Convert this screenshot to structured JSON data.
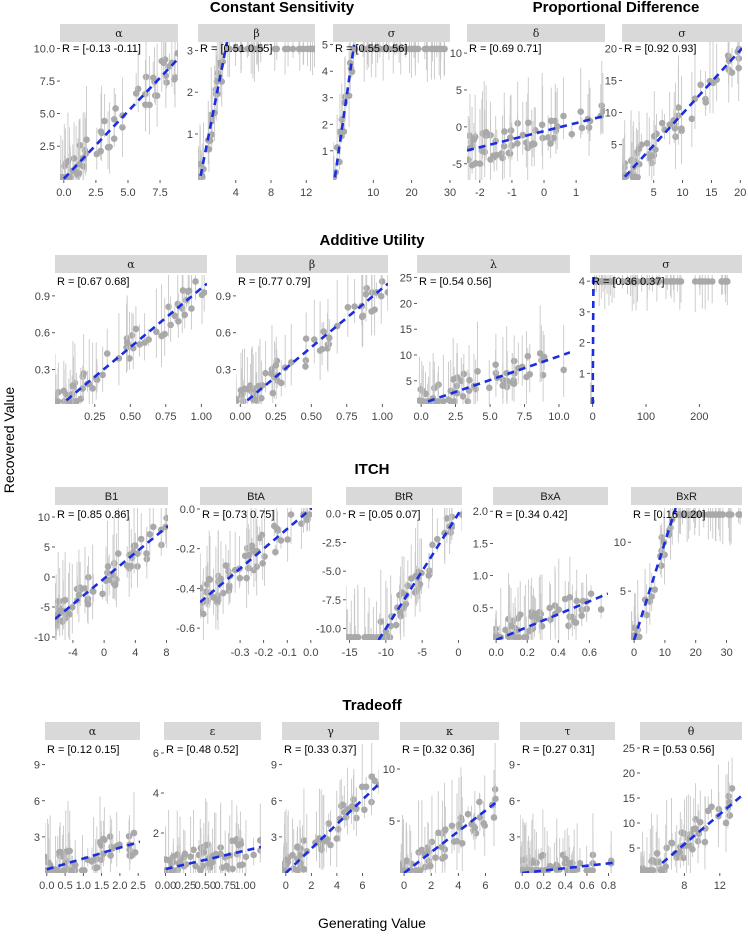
{
  "axes": {
    "xlabel": "Generating Value",
    "ylabel": "Recovered Value"
  },
  "colors": {
    "points": "#a9a9a9",
    "errorbars": "#c8c8c8",
    "fit": "#1a2ee0",
    "strip": "#d9d9d9"
  },
  "groups": [
    {
      "title": "Constant Sensitivity"
    },
    {
      "title": "Proportional Difference"
    },
    {
      "title": "Additive Utility"
    },
    {
      "title": "ITCH"
    },
    {
      "title": "Tradeoff"
    }
  ],
  "chart_data": [
    {
      "group": "Constant Sensitivity",
      "strip": "α",
      "r_label": "R = [-0.13 -0.11]",
      "type": "scatter",
      "xlim": [
        -0.3,
        8.9
      ],
      "ylim": [
        -0.1,
        10.5
      ],
      "xticks": [
        {
          "v": 0,
          "l": "0.0"
        },
        {
          "v": 2.5,
          "l": "2.5"
        },
        {
          "v": 5,
          "l": "5.0"
        },
        {
          "v": 7.5,
          "l": "7.5"
        }
      ],
      "yticks": [
        {
          "v": 2.5,
          "l": "2.5"
        },
        {
          "v": 5,
          "l": "5.0"
        },
        {
          "v": 7.5,
          "l": "7.5"
        },
        {
          "v": 10,
          "l": "10.0"
        }
      ],
      "fit": [
        [
          0,
          0
        ],
        [
          8.9,
          9.2
        ]
      ]
    },
    {
      "group": "Constant Sensitivity",
      "strip": "β",
      "r_label": "R = [0.51 0.55]",
      "type": "scatter",
      "xlim": [
        -0.3,
        13
      ],
      "ylim": [
        -0.1,
        3.2
      ],
      "xticks": [
        {
          "v": 4,
          "l": "4"
        },
        {
          "v": 8,
          "l": "8"
        },
        {
          "v": 12,
          "l": "12"
        }
      ],
      "yticks": [
        {
          "v": 1,
          "l": "1"
        },
        {
          "v": 2,
          "l": "2"
        },
        {
          "v": 3,
          "l": "3"
        }
      ],
      "fit": [
        [
          0,
          0
        ],
        [
          3.0,
          3.2
        ]
      ]
    },
    {
      "group": "Constant Sensitivity",
      "strip": "σ",
      "r_label": "R = [0.55 0.56]",
      "type": "scatter",
      "xlim": [
        -0.5,
        30
      ],
      "ylim": [
        -0.1,
        5.1
      ],
      "xticks": [
        {
          "v": 10,
          "l": "10"
        },
        {
          "v": 20,
          "l": "20"
        },
        {
          "v": 30,
          "l": "30"
        }
      ],
      "yticks": [
        {
          "v": 1,
          "l": "1"
        },
        {
          "v": 2,
          "l": "2"
        },
        {
          "v": 3,
          "l": "3"
        },
        {
          "v": 4,
          "l": "4"
        },
        {
          "v": 5,
          "l": "5"
        }
      ],
      "fit": [
        [
          0,
          0
        ],
        [
          5,
          5
        ]
      ]
    },
    {
      "group": "Proportional Difference",
      "strip": "δ",
      "r_label": "R = [0.69 0.71]",
      "type": "scatter",
      "xlim": [
        -2.4,
        1.9
      ],
      "ylim": [
        -7.2,
        11.5
      ],
      "xticks": [
        {
          "v": -2,
          "l": "-2"
        },
        {
          "v": -1,
          "l": "-1"
        },
        {
          "v": 0,
          "l": "0"
        },
        {
          "v": 1,
          "l": "1"
        }
      ],
      "yticks": [
        {
          "v": -5,
          "l": "-5"
        },
        {
          "v": 0,
          "l": "0"
        },
        {
          "v": 5,
          "l": "5"
        },
        {
          "v": 10,
          "l": "10"
        }
      ],
      "fit": [
        [
          -2.4,
          -3.2
        ],
        [
          1.9,
          1.5
        ]
      ]
    },
    {
      "group": "Proportional Difference",
      "strip": "σ",
      "r_label": "R = [0.92 0.93]",
      "type": "scatter",
      "xlim": [
        -0.5,
        20.3
      ],
      "ylim": [
        -0.5,
        21
      ],
      "xticks": [
        {
          "v": 5,
          "l": "5"
        },
        {
          "v": 10,
          "l": "10"
        },
        {
          "v": 15,
          "l": "15"
        },
        {
          "v": 20,
          "l": "20"
        }
      ],
      "yticks": [
        {
          "v": 5,
          "l": "5"
        },
        {
          "v": 10,
          "l": "10"
        },
        {
          "v": 15,
          "l": "15"
        },
        {
          "v": 20,
          "l": "20"
        }
      ],
      "fit": [
        [
          0,
          0
        ],
        [
          20.3,
          20
        ]
      ]
    },
    {
      "group": "Additive Utility",
      "strip": "α",
      "r_label": "R = [0.67 0.68]",
      "type": "scatter",
      "xlim": [
        -0.03,
        1.04
      ],
      "ylim": [
        0.02,
        1.07
      ],
      "xticks": [
        {
          "v": 0.25,
          "l": "0.25"
        },
        {
          "v": 0.5,
          "l": "0.50"
        },
        {
          "v": 0.75,
          "l": "0.75"
        },
        {
          "v": 1,
          "l": "1.00"
        }
      ],
      "yticks": [
        {
          "v": 0.3,
          "l": "0.3"
        },
        {
          "v": 0.6,
          "l": "0.6"
        },
        {
          "v": 0.9,
          "l": "0.9"
        }
      ],
      "fit": [
        [
          0.05,
          0.05
        ],
        [
          1.04,
          1.0
        ]
      ]
    },
    {
      "group": "Additive Utility",
      "strip": "β",
      "r_label": "R = [0.77 0.79]",
      "type": "scatter",
      "xlim": [
        -0.03,
        1.04
      ],
      "ylim": [
        0.02,
        1.07
      ],
      "xticks": [
        {
          "v": 0,
          "l": "0.00"
        },
        {
          "v": 0.25,
          "l": "0.25"
        },
        {
          "v": 0.5,
          "l": "0.50"
        },
        {
          "v": 0.75,
          "l": "0.75"
        },
        {
          "v": 1,
          "l": "1.00"
        }
      ],
      "yticks": [
        {
          "v": 0.3,
          "l": "0.3"
        },
        {
          "v": 0.6,
          "l": "0.6"
        },
        {
          "v": 0.9,
          "l": "0.9"
        }
      ],
      "fit": [
        [
          0.05,
          0.05
        ],
        [
          1.04,
          1.0
        ]
      ]
    },
    {
      "group": "Additive Utility",
      "strip": "λ",
      "r_label": "R = [0.54 0.56]",
      "type": "scatter",
      "xlim": [
        -0.3,
        10.8
      ],
      "ylim": [
        0.5,
        25.5
      ],
      "xticks": [
        {
          "v": 0,
          "l": "0.0"
        },
        {
          "v": 2.5,
          "l": "2.5"
        },
        {
          "v": 5,
          "l": "5.0"
        },
        {
          "v": 7.5,
          "l": "7.5"
        },
        {
          "v": 10,
          "l": "10.0"
        }
      ],
      "yticks": [
        {
          "v": 5,
          "l": "5"
        },
        {
          "v": 10,
          "l": "10"
        },
        {
          "v": 15,
          "l": "15"
        },
        {
          "v": 20,
          "l": "20"
        },
        {
          "v": 25,
          "l": "25"
        }
      ],
      "fit": [
        [
          0.5,
          1
        ],
        [
          10.8,
          10.5
        ]
      ]
    },
    {
      "group": "Additive Utility",
      "strip": "σ",
      "r_label": "R = [0.36 0.37]",
      "type": "scatter",
      "xlim": [
        -5,
        280
      ],
      "ylim": [
        0,
        4.2
      ],
      "xticks": [
        {
          "v": 0,
          "l": "0"
        },
        {
          "v": 100,
          "l": "100"
        },
        {
          "v": 200,
          "l": "200"
        }
      ],
      "yticks": [
        {
          "v": 1,
          "l": "1"
        },
        {
          "v": 2,
          "l": "2"
        },
        {
          "v": 3,
          "l": "3"
        },
        {
          "v": 4,
          "l": "4"
        }
      ],
      "fit": [
        [
          0,
          0
        ],
        [
          1.5,
          4.2
        ]
      ]
    },
    {
      "group": "ITCH",
      "strip": "B1",
      "r_label": "R = [0.85 0.86]",
      "type": "scatter",
      "xlim": [
        -6.3,
        8.2
      ],
      "ylim": [
        -10.5,
        11.5
      ],
      "xticks": [
        {
          "v": -4,
          "l": "-4"
        },
        {
          "v": 0,
          "l": "0"
        },
        {
          "v": 4,
          "l": "4"
        },
        {
          "v": 8,
          "l": "8"
        }
      ],
      "yticks": [
        {
          "v": -10,
          "l": "-10"
        },
        {
          "v": -5,
          "l": "-5"
        },
        {
          "v": 0,
          "l": "0"
        },
        {
          "v": 5,
          "l": "5"
        },
        {
          "v": 10,
          "l": "10"
        }
      ],
      "fit": [
        [
          -6.3,
          -7
        ],
        [
          8.2,
          8.5
        ]
      ]
    },
    {
      "group": "ITCH",
      "strip": "BtA",
      "r_label": "R = [0.73 0.75]",
      "type": "scatter",
      "xlim": [
        -0.47,
        0.005
      ],
      "ylim": [
        -0.66,
        0.005
      ],
      "xticks": [
        {
          "v": -0.3,
          "l": "-0.3"
        },
        {
          "v": -0.2,
          "l": "-0.2"
        },
        {
          "v": -0.1,
          "l": "-0.1"
        },
        {
          "v": 0,
          "l": "0.0"
        }
      ],
      "yticks": [
        {
          "v": -0.6,
          "l": "-0.6"
        },
        {
          "v": -0.4,
          "l": "-0.4"
        },
        {
          "v": -0.2,
          "l": "-0.2"
        },
        {
          "v": 0,
          "l": "0.0"
        }
      ],
      "fit": [
        [
          -0.47,
          -0.47
        ],
        [
          0.005,
          0.005
        ]
      ]
    },
    {
      "group": "ITCH",
      "strip": "BtR",
      "r_label": "R = [0.05 0.07]",
      "type": "scatter",
      "xlim": [
        -15.5,
        0.5
      ],
      "ylim": [
        -11,
        0.5
      ],
      "xticks": [
        {
          "v": -15,
          "l": "-15"
        },
        {
          "v": -10,
          "l": "-10"
        },
        {
          "v": -5,
          "l": "-5"
        },
        {
          "v": 0,
          "l": "0"
        }
      ],
      "yticks": [
        {
          "v": -10,
          "l": "-10.0"
        },
        {
          "v": -7.5,
          "l": "-7.5"
        },
        {
          "v": -5,
          "l": "-5.0"
        },
        {
          "v": -2.5,
          "l": "-2.5"
        },
        {
          "v": 0,
          "l": "0.0"
        }
      ],
      "fit": [
        [
          -11,
          -11
        ],
        [
          0.5,
          0.5
        ]
      ]
    },
    {
      "group": "ITCH",
      "strip": "BxA",
      "r_label": "R = [0.34 0.42]",
      "type": "scatter",
      "xlim": [
        -0.02,
        0.72
      ],
      "ylim": [
        0,
        2.05
      ],
      "xticks": [
        {
          "v": 0,
          "l": "0.0"
        },
        {
          "v": 0.2,
          "l": "0.2"
        },
        {
          "v": 0.4,
          "l": "0.4"
        },
        {
          "v": 0.6,
          "l": "0.6"
        }
      ],
      "yticks": [
        {
          "v": 0.5,
          "l": "0.5"
        },
        {
          "v": 1,
          "l": "1.0"
        },
        {
          "v": 1.5,
          "l": "1.5"
        },
        {
          "v": 2,
          "l": "2.0"
        }
      ],
      "fit": [
        [
          0,
          0
        ],
        [
          0.72,
          0.72
        ]
      ]
    },
    {
      "group": "ITCH",
      "strip": "BxR",
      "r_label": "R = [0.16 0.20]",
      "type": "scatter",
      "xlim": [
        -1,
        35
      ],
      "ylim": [
        0,
        13.5
      ],
      "xticks": [
        {
          "v": 0,
          "l": "0"
        },
        {
          "v": 10,
          "l": "10"
        },
        {
          "v": 20,
          "l": "20"
        },
        {
          "v": 30,
          "l": "30"
        }
      ],
      "yticks": [
        {
          "v": 5,
          "l": "5"
        },
        {
          "v": 10,
          "l": "10"
        }
      ],
      "fit": [
        [
          0,
          0
        ],
        [
          13.5,
          13.5
        ]
      ]
    },
    {
      "group": "Tradeoff",
      "strip": "α",
      "r_label": "R = [0.12 0.15]",
      "type": "scatter",
      "xlim": [
        -0.05,
        2.55
      ],
      "ylim": [
        0,
        10.8
      ],
      "xticks": [
        {
          "v": 0,
          "l": "0.0"
        },
        {
          "v": 0.5,
          "l": "0.5"
        },
        {
          "v": 1,
          "l": "1.0"
        },
        {
          "v": 1.5,
          "l": "1.5"
        },
        {
          "v": 2,
          "l": "2.0"
        },
        {
          "v": 2.5,
          "l": "2.5"
        }
      ],
      "yticks": [
        {
          "v": 3,
          "l": "3"
        },
        {
          "v": 6,
          "l": "6"
        },
        {
          "v": 9,
          "l": "9"
        }
      ],
      "fit": [
        [
          0,
          0.3
        ],
        [
          2.55,
          2.6
        ]
      ]
    },
    {
      "group": "Tradeoff",
      "strip": "ε",
      "r_label": "R = [0.48 0.52]",
      "type": "scatter",
      "xlim": [
        -0.02,
        1.2
      ],
      "ylim": [
        0,
        6.5
      ],
      "xticks": [
        {
          "v": 0,
          "l": "0.00"
        },
        {
          "v": 0.25,
          "l": "0.25"
        },
        {
          "v": 0.5,
          "l": "0.50"
        },
        {
          "v": 0.75,
          "l": "0.75"
        },
        {
          "v": 1,
          "l": "1.00"
        }
      ],
      "yticks": [
        {
          "v": 2,
          "l": "2"
        },
        {
          "v": 4,
          "l": "4"
        },
        {
          "v": 6,
          "l": "6"
        }
      ],
      "fit": [
        [
          0,
          0.2
        ],
        [
          1.2,
          1.3
        ]
      ]
    },
    {
      "group": "Tradeoff",
      "strip": "γ",
      "r_label": "R = [0.33 0.37]",
      "type": "scatter",
      "xlim": [
        -0.3,
        7.3
      ],
      "ylim": [
        0,
        10.8
      ],
      "xticks": [
        {
          "v": 0,
          "l": "0"
        },
        {
          "v": 2,
          "l": "2"
        },
        {
          "v": 4,
          "l": "4"
        },
        {
          "v": 6,
          "l": "6"
        }
      ],
      "yticks": [
        {
          "v": 3,
          "l": "3"
        },
        {
          "v": 6,
          "l": "6"
        },
        {
          "v": 9,
          "l": "9"
        }
      ],
      "fit": [
        [
          0,
          0
        ],
        [
          7.3,
          7.4
        ]
      ]
    },
    {
      "group": "Tradeoff",
      "strip": "κ",
      "r_label": "R = [0.32 0.36]",
      "type": "scatter",
      "xlim": [
        -0.3,
        7
      ],
      "ylim": [
        0,
        12.5
      ],
      "xticks": [
        {
          "v": 0,
          "l": "0"
        },
        {
          "v": 2,
          "l": "2"
        },
        {
          "v": 4,
          "l": "4"
        },
        {
          "v": 6,
          "l": "6"
        }
      ],
      "yticks": [
        {
          "v": 5,
          "l": "5"
        },
        {
          "v": 10,
          "l": "10"
        }
      ],
      "fit": [
        [
          0,
          0
        ],
        [
          7,
          7
        ]
      ]
    },
    {
      "group": "Tradeoff",
      "strip": "τ",
      "r_label": "R = [0.27 0.31]",
      "type": "scatter",
      "xlim": [
        -0.02,
        0.86
      ],
      "ylim": [
        0,
        10.8
      ],
      "xticks": [
        {
          "v": 0,
          "l": "0.0"
        },
        {
          "v": 0.2,
          "l": "0.2"
        },
        {
          "v": 0.4,
          "l": "0.4"
        },
        {
          "v": 0.6,
          "l": "0.6"
        },
        {
          "v": 0.8,
          "l": "0.8"
        }
      ],
      "yticks": [
        {
          "v": 3,
          "l": "3"
        },
        {
          "v": 6,
          "l": "6"
        },
        {
          "v": 9,
          "l": "9"
        }
      ],
      "fit": [
        [
          0,
          0
        ],
        [
          0.86,
          0.86
        ]
      ]
    },
    {
      "group": "Tradeoff",
      "strip": "θ",
      "r_label": "R = [0.53 0.56]",
      "type": "scatter",
      "xlim": [
        3,
        14.5
      ],
      "ylim": [
        0,
        26
      ],
      "xticks": [
        {
          "v": 8,
          "l": "8"
        },
        {
          "v": 12,
          "l": "12"
        }
      ],
      "yticks": [
        {
          "v": 5,
          "l": "5"
        },
        {
          "v": 10,
          "l": "10"
        },
        {
          "v": 15,
          "l": "15"
        },
        {
          "v": 20,
          "l": "20"
        },
        {
          "v": 25,
          "l": "25"
        }
      ],
      "fit": [
        [
          5.5,
          2
        ],
        [
          14.5,
          15.5
        ]
      ]
    }
  ]
}
